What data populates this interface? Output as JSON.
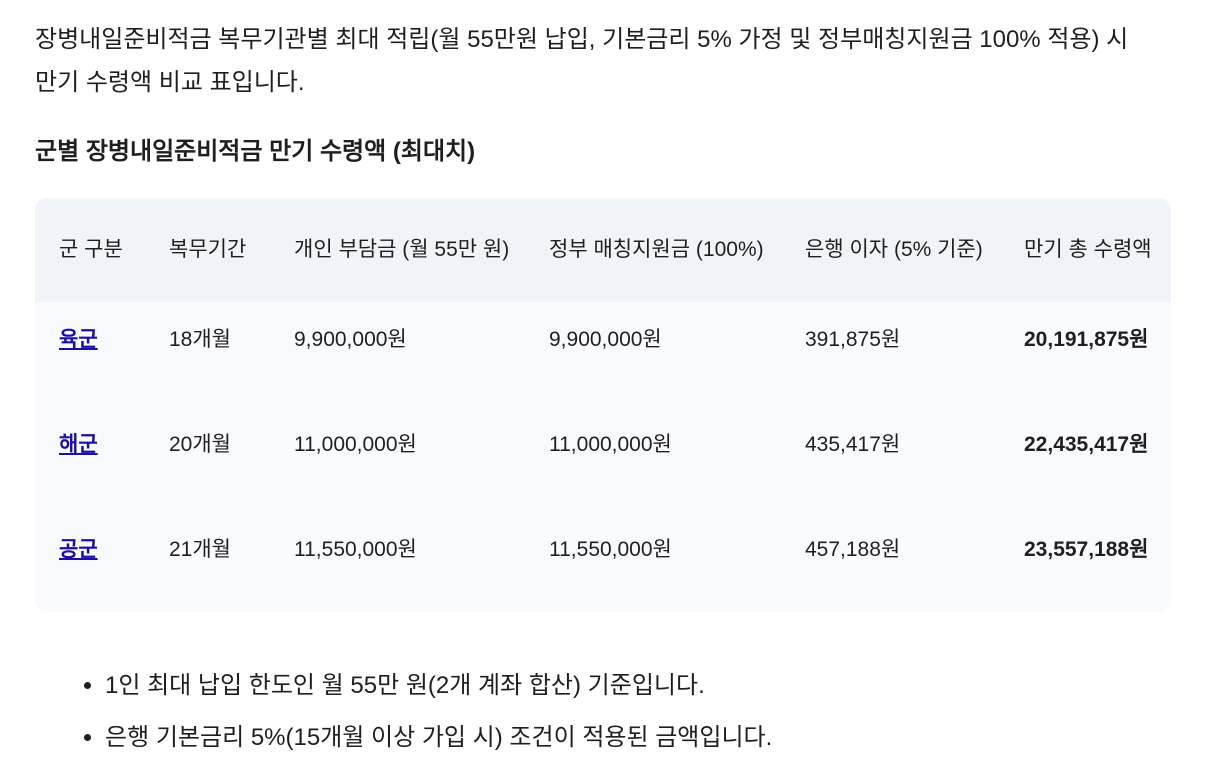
{
  "intro": "장병내일준비적금 복무기관별 최대 적립(월 55만원 납입, 기본금리 5% 가정 및 정부매칭지원금 100% 적용) 시 만기 수령액 비교 표입니다.",
  "heading": "군별 장병내일준비적금 만기 수령액 (최대치)",
  "table": {
    "headers": [
      "군 구분",
      "복무기간",
      "개인 부담금 (월 55만 원)",
      "정부 매칭지원금 (100%)",
      "은행 이자 (5% 기준)",
      "만기 총 수령액"
    ],
    "rows": [
      [
        "육군",
        "18개월",
        "9,900,000원",
        "9,900,000원",
        "391,875원",
        "20,191,875원"
      ],
      [
        "해군",
        "20개월",
        "11,000,000원",
        "11,000,000원",
        "435,417원",
        "22,435,417원"
      ],
      [
        "공군",
        "21개월",
        "11,550,000원",
        "11,550,000원",
        "457,188원",
        "23,557,188원"
      ]
    ]
  },
  "notes": [
    "1인 최대 납입 한도인 월 55만 원(2개 계좌 합산) 기준입니다.",
    "은행 기본금리 5%(15개월 이상 가입 시) 조건이 적용된 금액입니다."
  ]
}
